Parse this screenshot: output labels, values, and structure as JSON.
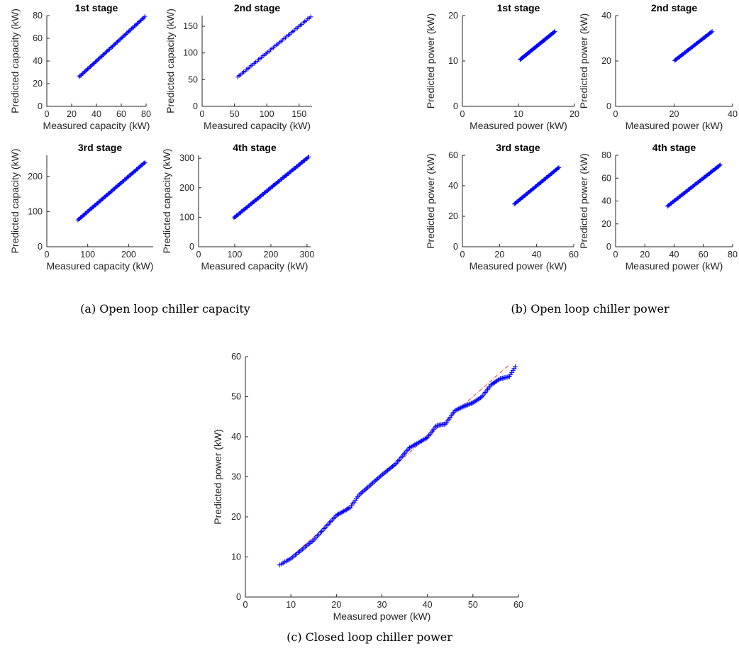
{
  "captions": {
    "a": "(a) Open loop chiller capacity",
    "b": "(b) Open loop chiller power",
    "c": "(c) Closed loop chiller power"
  },
  "colors": {
    "marker": "#0000ff",
    "reference_line": "#e8342e",
    "axes": "#262626"
  },
  "chart_data": [
    {
      "id": "a1",
      "group": "a",
      "type": "scatter",
      "marker": "+",
      "title": "1st stage",
      "xlabel": "Measured capacity (kW)",
      "ylabel": "Predicted capacity (kW)",
      "xlim": [
        0,
        80
      ],
      "ylim": [
        0,
        80
      ],
      "xticks": [
        0,
        20,
        40,
        60,
        80
      ],
      "yticks": [
        0,
        20,
        40,
        60,
        80
      ],
      "points_range": [
        26,
        79
      ],
      "n_points": 70,
      "reference_line": [
        26,
        79
      ]
    },
    {
      "id": "a2",
      "group": "a",
      "type": "scatter",
      "marker": "+",
      "title": "2nd stage",
      "xlabel": "Measured capacity (kW)",
      "ylabel": "Predicted capacity (kW)",
      "xlim": [
        0,
        170
      ],
      "ylim": [
        0,
        170
      ],
      "xticks": [
        0,
        50,
        100,
        150
      ],
      "yticks": [
        0,
        50,
        100,
        150
      ],
      "points_range": [
        55,
        168
      ],
      "n_points": 50,
      "reference_line": [
        55,
        168
      ]
    },
    {
      "id": "a3",
      "group": "a",
      "type": "scatter",
      "marker": "+",
      "title": "3rd stage",
      "xlabel": "Measured capacity (kW)",
      "ylabel": "Predicted capacity (kW)",
      "xlim": [
        0,
        260
      ],
      "ylim": [
        0,
        260
      ],
      "xticks": [
        0,
        100,
        200
      ],
      "yticks": [
        0,
        100,
        200
      ],
      "points_range": [
        76,
        240
      ],
      "n_points": 80,
      "reference_line": [
        76,
        240
      ]
    },
    {
      "id": "a4",
      "group": "a",
      "type": "scatter",
      "marker": "+",
      "title": "4th stage",
      "xlabel": "Measured capacity (kW)",
      "ylabel": "Predicted capacity (kW)",
      "xlim": [
        0,
        310
      ],
      "ylim": [
        0,
        310
      ],
      "xticks": [
        0,
        100,
        200,
        300
      ],
      "yticks": [
        0,
        100,
        200,
        300
      ],
      "points_range": [
        98,
        305
      ],
      "n_points": 90,
      "reference_line": [
        98,
        305
      ]
    },
    {
      "id": "b1",
      "group": "b",
      "type": "scatter",
      "marker": "+",
      "title": "1st stage",
      "xlabel": "Measured power (kW)",
      "ylabel": "Predicted power (kW)",
      "xlim": [
        0,
        20
      ],
      "ylim": [
        0,
        20
      ],
      "xticks": [
        0,
        10,
        20
      ],
      "yticks": [
        0,
        10,
        20
      ],
      "points_range": [
        10.3,
        16.5
      ],
      "n_points": 60,
      "reference_line": [
        10.3,
        16.5
      ]
    },
    {
      "id": "b2",
      "group": "b",
      "type": "scatter",
      "marker": "+",
      "title": "2nd stage",
      "xlabel": "Measured power (kW)",
      "ylabel": "Predicted power (kW)",
      "xlim": [
        0,
        40
      ],
      "ylim": [
        0,
        40
      ],
      "xticks": [
        0,
        20,
        40
      ],
      "yticks": [
        0,
        20,
        40
      ],
      "points_range": [
        20.2,
        33
      ],
      "n_points": 45,
      "reference_line": [
        20.2,
        33
      ]
    },
    {
      "id": "b3",
      "group": "b",
      "type": "scatter",
      "marker": "+",
      "title": "3rd stage",
      "xlabel": "Measured power (kW)",
      "ylabel": "Predicted power (kW)",
      "xlim": [
        0,
        60
      ],
      "ylim": [
        0,
        60
      ],
      "xticks": [
        0,
        20,
        40,
        60
      ],
      "yticks": [
        0,
        20,
        40,
        60
      ],
      "points_range": [
        28,
        52
      ],
      "n_points": 55,
      "reference_line": [
        28,
        52
      ]
    },
    {
      "id": "b4",
      "group": "b",
      "type": "scatter",
      "marker": "+",
      "title": "4th stage",
      "xlabel": "Measured power (kW)",
      "ylabel": "Predicted power (kW)",
      "xlim": [
        0,
        80
      ],
      "ylim": [
        0,
        80
      ],
      "xticks": [
        0,
        20,
        40,
        60,
        80
      ],
      "yticks": [
        0,
        20,
        40,
        60,
        80
      ],
      "points_range": [
        35.5,
        71.5
      ],
      "n_points": 65,
      "reference_line": [
        35.5,
        71.5
      ]
    },
    {
      "id": "c",
      "group": "c",
      "type": "scatter",
      "marker": "+",
      "title": "",
      "xlabel": "Measured power (kW)",
      "ylabel": "Predicted power (kW)",
      "xlim": [
        0,
        60
      ],
      "ylim": [
        0,
        60
      ],
      "xticks": [
        0,
        10,
        20,
        30,
        40,
        50,
        60
      ],
      "yticks": [
        0,
        10,
        20,
        30,
        40,
        50,
        60
      ],
      "reference_line": [
        8,
        58
      ],
      "curve": [
        [
          7.5,
          8
        ],
        [
          10,
          9.6
        ],
        [
          15,
          14.2
        ],
        [
          20,
          20.4
        ],
        [
          23,
          22.3
        ],
        [
          25,
          25.5
        ],
        [
          28,
          28.5
        ],
        [
          30,
          30.5
        ],
        [
          33,
          33.2
        ],
        [
          36,
          37.2
        ],
        [
          40,
          39.8
        ],
        [
          42,
          42.8
        ],
        [
          44,
          43.2
        ],
        [
          46,
          46.5
        ],
        [
          48,
          47.6
        ],
        [
          50,
          48.5
        ],
        [
          52,
          50
        ],
        [
          54,
          53
        ],
        [
          56,
          54.5
        ],
        [
          58,
          55
        ],
        [
          59.3,
          57.5
        ]
      ],
      "n_points": 190
    }
  ]
}
